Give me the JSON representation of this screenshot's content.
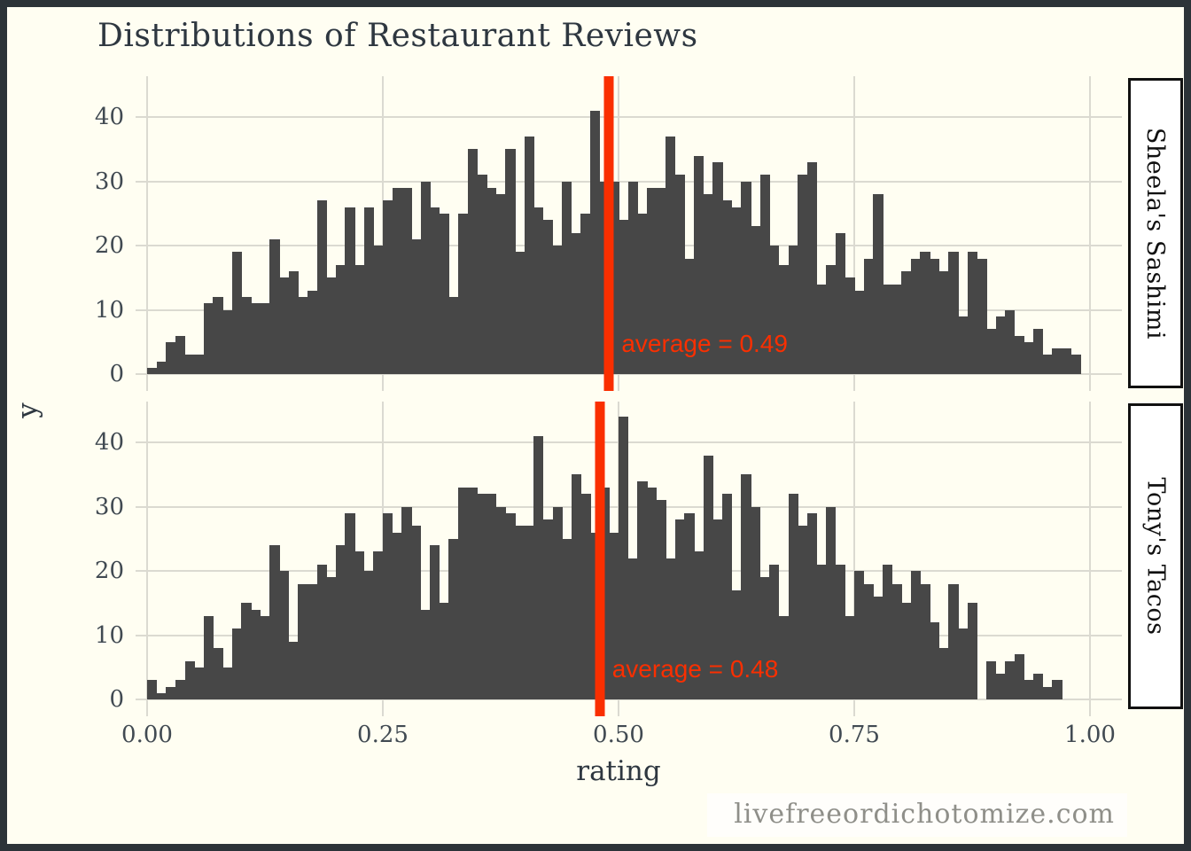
{
  "title": "Distributions of Restaurant Reviews",
  "watermark": "livefreeordichotomize.com",
  "axes": {
    "x_label": "rating",
    "y_label": "y",
    "x_ticks": [
      {
        "label": "0.00",
        "value": 0.0
      },
      {
        "label": "0.25",
        "value": 0.25
      },
      {
        "label": "0.50",
        "value": 0.5
      },
      {
        "label": "0.75",
        "value": 0.75
      },
      {
        "label": "1.00",
        "value": 1.0
      }
    ],
    "y_ticks": [
      {
        "label": "0",
        "value": 0
      },
      {
        "label": "10",
        "value": 10
      },
      {
        "label": "20",
        "value": 20
      },
      {
        "label": "30",
        "value": 30
      },
      {
        "label": "40",
        "value": 40
      }
    ],
    "xlim": [
      0,
      1
    ],
    "ylim": [
      0,
      46
    ],
    "grid": "major-only"
  },
  "colors": {
    "background": "#fffef2",
    "frame": "#2c3338",
    "bar": "#474747",
    "grid": "#dbdad1",
    "accent_red": "#fa2f00",
    "text": "#2e3740",
    "tick_text": "#414a52",
    "strip_background": "#ffffff",
    "strip_border": "#111111",
    "watermark_text": "#8f8f89"
  },
  "chart_data": [
    {
      "type": "bar",
      "facet": "Sheela's Sashimi",
      "legend": "none",
      "bin_start": 0.005,
      "bin_width": 0.01,
      "values": [
        1,
        2,
        5,
        6,
        3,
        3,
        11,
        12,
        10,
        19,
        12,
        11,
        11,
        21,
        15,
        16,
        12,
        13,
        27,
        15,
        17,
        26,
        17,
        26,
        20,
        27,
        29,
        29,
        21,
        30,
        26,
        25,
        12,
        25,
        35,
        31,
        29,
        28,
        35,
        19,
        37,
        26,
        24,
        20,
        30,
        22,
        25,
        41,
        30,
        30,
        24,
        30,
        25,
        29,
        29,
        37,
        31,
        18,
        34,
        28,
        33,
        27,
        26,
        30,
        23,
        31,
        20,
        17,
        20,
        31,
        33,
        14,
        17,
        22,
        15,
        13,
        18,
        28,
        14,
        14,
        16,
        18,
        19,
        18,
        16,
        19,
        9,
        19,
        18,
        7,
        9,
        10,
        6,
        5,
        7,
        3,
        4,
        4,
        3
      ],
      "mean": 0.49,
      "annotation": "average = 0.49"
    },
    {
      "type": "bar",
      "facet": "Tony's Tacos",
      "legend": "none",
      "bin_start": 0.005,
      "bin_width": 0.01,
      "values": [
        3,
        1,
        2,
        3,
        6,
        5,
        13,
        8,
        5,
        11,
        15,
        14,
        13,
        24,
        20,
        9,
        18,
        18,
        21,
        19,
        24,
        29,
        23,
        20,
        23,
        29,
        26,
        30,
        27,
        14,
        24,
        15,
        25,
        33,
        33,
        32,
        32,
        30,
        29,
        27,
        27,
        41,
        28,
        30,
        25,
        35,
        32,
        26,
        33,
        26,
        44,
        22,
        34,
        33,
        31,
        22,
        28,
        29,
        23,
        38,
        28,
        32,
        17,
        35,
        30,
        19,
        21,
        13,
        32,
        27,
        29,
        21,
        30,
        21,
        13,
        20,
        18,
        16,
        21,
        18,
        15,
        20,
        18,
        12,
        8,
        18,
        11,
        15,
        0,
        6,
        4,
        6,
        7,
        3,
        4,
        2,
        3,
        0,
        0
      ],
      "mean": 0.48,
      "annotation": "average = 0.48"
    }
  ]
}
